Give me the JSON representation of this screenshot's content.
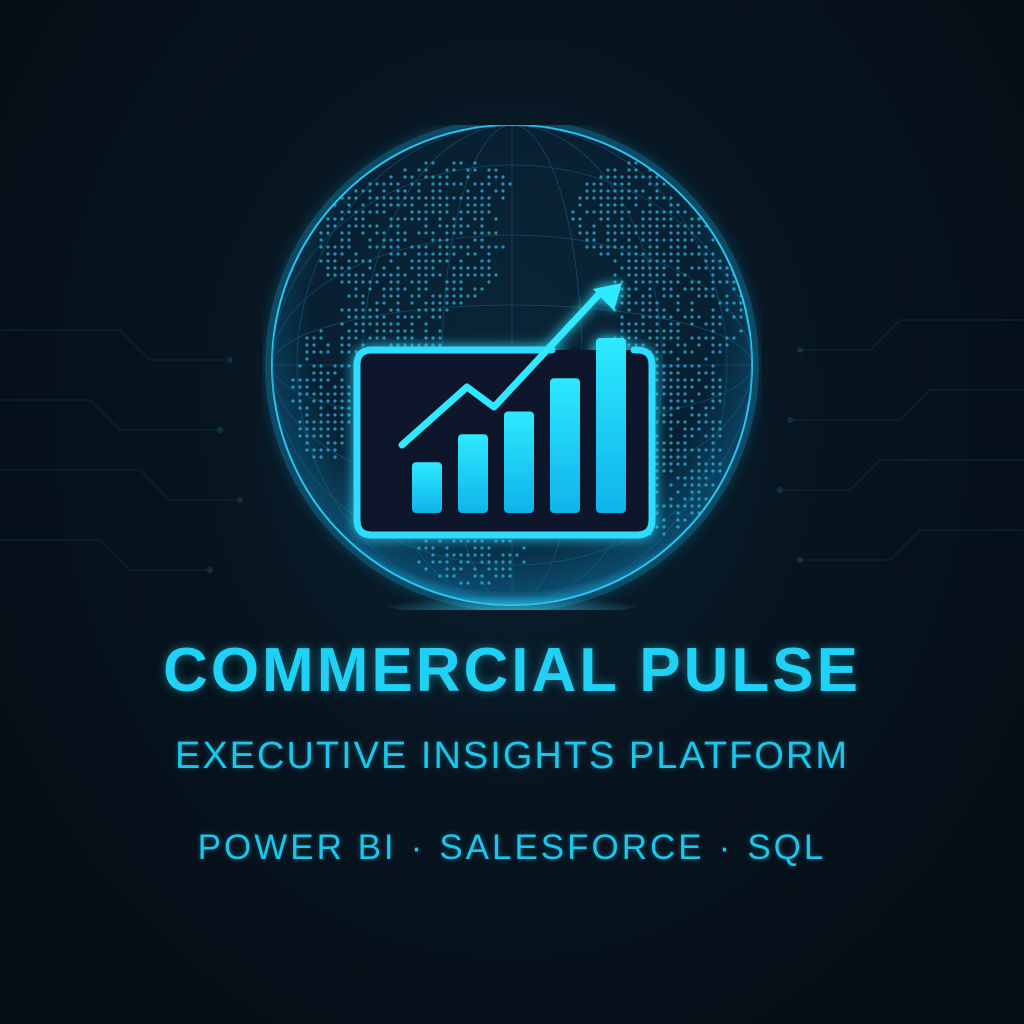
{
  "brand": {
    "title": "COMMERCIAL PULSE",
    "subtitle": "EXECUTIVE INSIGHTS PLATFORM",
    "tech_stack": [
      "POWER BI",
      "SALESFORCE",
      "SQL"
    ],
    "separator": "·"
  },
  "logo": {
    "globe_icon": "globe-icon",
    "chart_icon": "growth-chart-icon",
    "bar_levels": [
      0.29,
      0.45,
      0.58,
      0.77,
      1.0
    ]
  },
  "colors": {
    "background": "#06101a",
    "accent": "#1fd2f5",
    "globe_glow": "#0fa8e0"
  }
}
